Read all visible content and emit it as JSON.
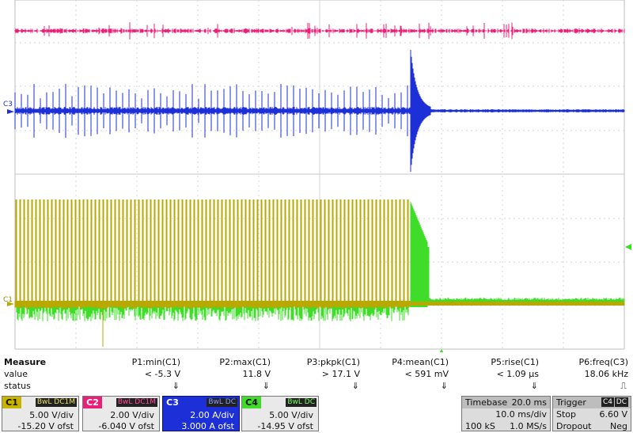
{
  "measure": {
    "labels": [
      "Measure",
      "value",
      "status"
    ],
    "params": [
      {
        "name": "P1:min(C1)",
        "value": "< -5.3 V",
        "status": "⇓"
      },
      {
        "name": "P2:max(C1)",
        "value": "11.8 V",
        "status": "⇓"
      },
      {
        "name": "P3:pkpk(C1)",
        "value": "> 17.1 V",
        "status": "⇓"
      },
      {
        "name": "P4:mean(C1)",
        "value": "< 591 mV",
        "status": "⇓"
      },
      {
        "name": "P5:rise(C1)",
        "value": "< 1.09 µs",
        "status": "⇓"
      },
      {
        "name": "P6:freq(C3)",
        "value": "18.06 kHz",
        "status": "⎍"
      }
    ]
  },
  "channels": [
    {
      "tag": "C1",
      "coupling": "BwL DC1M",
      "vdiv": "5.00 V/div",
      "offset": "-15.20 V ofst",
      "color": "#c8b400"
    },
    {
      "tag": "C2",
      "coupling": "BwL DC1M",
      "vdiv": "2.00 V/div",
      "offset": "-6.040 V ofst",
      "color": "#e8207a"
    },
    {
      "tag": "C3",
      "coupling": "BwL DC",
      "vdiv": "2.00 A/div",
      "offset": "3.000 A ofst",
      "color": "#1d2fd6"
    },
    {
      "tag": "C4",
      "coupling": "BwL DC",
      "vdiv": "5.00 V/div",
      "offset": "-14.95 V ofst",
      "color": "#3fdc2a"
    }
  ],
  "timebase": {
    "label": "Timebase",
    "value": "20.0 ms",
    "tdiv": "10.0 ms/div",
    "samples": "100 kS",
    "rate": "1.0 MS/s"
  },
  "trigger": {
    "label": "Trigger",
    "source": "C4",
    "coupling": "DC",
    "mode": "Stop",
    "level": "6.60 V",
    "type": "Dropout",
    "slope": "Neg"
  },
  "trace_labels": {
    "c3": "C3",
    "c1": "C1"
  },
  "colors": {
    "c1": "#b8a800",
    "c2": "#e8207a",
    "c3": "#1d2fd6",
    "c4": "#3fdc2a",
    "grid": "#bdbdbd"
  }
}
